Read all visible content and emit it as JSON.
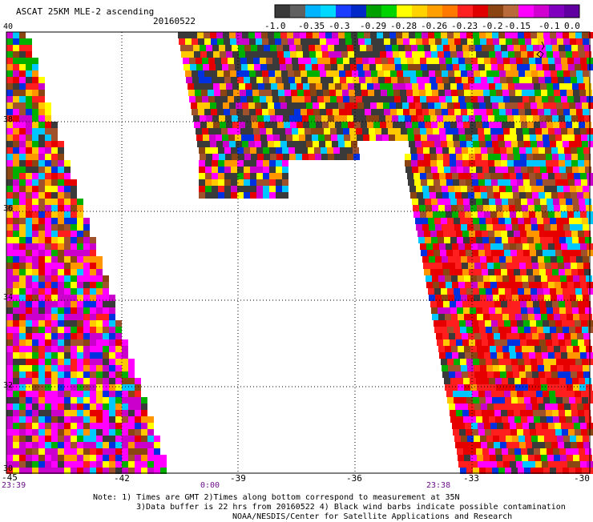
{
  "header": {
    "title": "ASCAT 25KM MLE-2 ascending",
    "date": "20160522"
  },
  "colorbar": {
    "colors": [
      "#3a3a3a",
      "#606060",
      "#00b4ff",
      "#00d8ff",
      "#1a3cff",
      "#0028c8",
      "#00a000",
      "#00d400",
      "#ffff00",
      "#ffd200",
      "#ffa000",
      "#ff7800",
      "#ff2020",
      "#e00000",
      "#8b4513",
      "#b86a3a",
      "#ff00ff",
      "#d000d0",
      "#8000c0",
      "#6000a0"
    ],
    "tick_labels": [
      "-1.0",
      "-0.35",
      "-0.3",
      "-0.29",
      "-0.28",
      "-0.26",
      "-0.23",
      "-0.2",
      "-0.15",
      "-0.1",
      "0.0"
    ]
  },
  "map": {
    "palette": [
      "#3a3a3a",
      "#00c8ff",
      "#0030e0",
      "#00b000",
      "#ffff00",
      "#ffc800",
      "#ff9600",
      "#ff1e1e",
      "#e60000",
      "#8b4513",
      "#ff00ff",
      "#cc00cc",
      "#a0522d"
    ],
    "x_range": [
      -45,
      -30
    ],
    "y_range": [
      30,
      40
    ],
    "lon_ticks": [
      "-45",
      "-42",
      "-39",
      "-36",
      "-33",
      "-30"
    ],
    "lat_ticks": [
      "40",
      "38",
      "36",
      "34",
      "32",
      "30"
    ],
    "grid": true
  },
  "times": {
    "t1": "23:39",
    "t2": "0:00",
    "t3": "23:38"
  },
  "notes": {
    "line1": "Note: 1) Times are GMT 2)Times along bottom correspond to measurement at 35N",
    "line2": "3)Data buffer is 22 hrs from 20160522 4) Black wind barbs indicate possible contamination",
    "line3": "NOAA/NESDIS/Center for Satellite Applications and Research"
  }
}
